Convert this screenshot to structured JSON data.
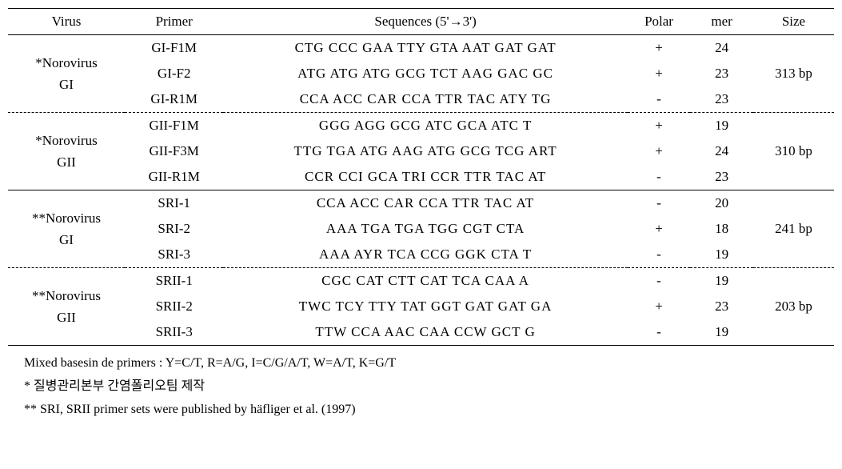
{
  "headers": {
    "virus": "Virus",
    "primer": "Primer",
    "sequences": "Sequences (5'→3')",
    "polar": "Polar",
    "mer": "mer",
    "size": "Size"
  },
  "groups": [
    {
      "virus": "*Norovirus GI",
      "star": "*",
      "name1": "Norovirus",
      "name2": "GI",
      "size": "313 bp",
      "sep": "none",
      "rows": [
        {
          "primer": "GI-F1M",
          "seq": "CTG CCC GAA TTY GTA AAT GAT GAT",
          "polar": "+",
          "mer": "24"
        },
        {
          "primer": "GI-F2",
          "seq": "ATG ATG ATG GCG TCT AAG GAC GC",
          "polar": "+",
          "mer": "23"
        },
        {
          "primer": "GI-R1M",
          "seq": "CCA ACC CAR CCA TTR TAC ATY TG",
          "polar": "-",
          "mer": "23"
        }
      ]
    },
    {
      "virus": "*Norovirus GII",
      "star": "*",
      "name1": "Norovirus",
      "name2": "GII",
      "size": "310 bp",
      "sep": "dashed",
      "rows": [
        {
          "primer": "GII-F1M",
          "seq": "GGG AGG GCG ATC GCA ATC T",
          "polar": "+",
          "mer": "19"
        },
        {
          "primer": "GII-F3M",
          "seq": "TTG TGA ATG AAG ATG GCG TCG ART",
          "polar": "+",
          "mer": "24"
        },
        {
          "primer": "GII-R1M",
          "seq": "CCR CCI GCA TRI CCR TTR TAC AT",
          "polar": "-",
          "mer": "23"
        }
      ]
    },
    {
      "virus": "**Norovirus GI",
      "star": "**",
      "name1": "Norovirus",
      "name2": "GI",
      "size": "241 bp",
      "sep": "solid",
      "rows": [
        {
          "primer": "SRI-1",
          "seq": "CCA ACC CAR CCA TTR TAC AT",
          "polar": "-",
          "mer": "20"
        },
        {
          "primer": "SRI-2",
          "seq": "AAA TGA TGA TGG CGT CTA",
          "polar": "+",
          "mer": "18"
        },
        {
          "primer": "SRI-3",
          "seq": "AAA AYR TCA CCG GGK CTA T",
          "polar": "-",
          "mer": "19"
        }
      ]
    },
    {
      "virus": "**Norovirus GII",
      "star": "**",
      "name1": "Norovirus",
      "name2": "GII",
      "size": "203 bp",
      "sep": "dashed",
      "rows": [
        {
          "primer": "SRII-1",
          "seq": "CGC CAT CTT CAT TCA CAA A",
          "polar": "-",
          "mer": "19"
        },
        {
          "primer": "SRII-2",
          "seq": "TWC TCY TTY TAT GGT GAT GAT GA",
          "polar": "+",
          "mer": "23"
        },
        {
          "primer": "SRII-3",
          "seq": "TTW CCA AAC CAA CCW GCT G",
          "polar": "-",
          "mer": "19"
        }
      ]
    }
  ],
  "footnotes": {
    "f1": "Mixed basesin de primers : Y=C/T, R=A/G, I=C/G/A/T, W=A/T, K=G/T",
    "f2": "* 질병관리본부 간염폴리오팀 제작",
    "f3": "** SRI, SRII primer sets were published by häfliger et al. (1997)"
  },
  "style": {
    "font_family": "Times New Roman, serif",
    "font_size_pt": 13,
    "border_color": "#000000",
    "background": "#ffffff",
    "text_color": "#000000"
  }
}
